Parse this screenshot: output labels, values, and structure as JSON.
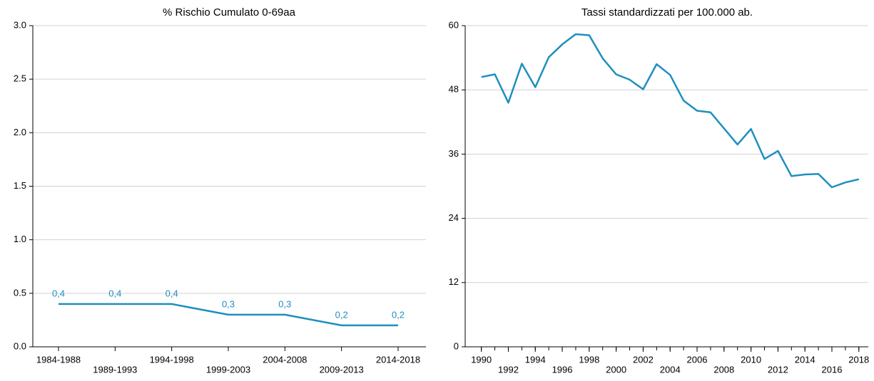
{
  "chart_data": [
    {
      "type": "line",
      "title": "% Rischio Cumulato 0-69aa",
      "categories": [
        "1984-1988",
        "1989-1993",
        "1994-1998",
        "1999-2003",
        "2004-2008",
        "2009-2013",
        "2014-2018"
      ],
      "values": [
        0.4,
        0.4,
        0.4,
        0.3,
        0.3,
        0.2,
        0.2
      ],
      "value_labels": [
        "0,4",
        "0,4",
        "0,4",
        "0,3",
        "0,3",
        "0,2",
        "0,2"
      ],
      "color": "#1f8fbf",
      "ylim": [
        0,
        3
      ],
      "yticks": [
        {
          "value": 0,
          "label": "0.0"
        },
        0.5,
        {
          "value": 1,
          "label": "1.0"
        },
        1.5,
        {
          "value": 2,
          "label": "2.0"
        },
        2.5,
        {
          "value": 3,
          "label": "3.0"
        }
      ],
      "grid": true
    },
    {
      "type": "line",
      "title": "Tassi standardizzati per 100.000 ab.",
      "x": [
        1990,
        1991,
        1992,
        1993,
        1994,
        1995,
        1996,
        1997,
        1998,
        1999,
        2000,
        2001,
        2002,
        2003,
        2004,
        2005,
        2006,
        2007,
        2008,
        2009,
        2010,
        2011,
        2012,
        2013,
        2014,
        2015,
        2016,
        2017,
        2018
      ],
      "values": [
        50.4,
        50.9,
        45.6,
        52.9,
        48.5,
        54.1,
        56.5,
        58.4,
        58.2,
        53.9,
        50.9,
        49.9,
        48.1,
        52.8,
        50.8,
        46.0,
        44.1,
        43.8,
        40.8,
        37.8,
        40.7,
        35.1,
        36.6,
        31.9,
        32.2,
        32.3,
        29.8,
        30.7,
        31.3
      ],
      "color": "#1f8fbf",
      "xlim": [
        1988.8,
        2018.7
      ],
      "xticks": [
        1990,
        1992,
        1994,
        1996,
        1998,
        2000,
        2002,
        2004,
        2006,
        2008,
        2010,
        2012,
        2014,
        2016,
        2018
      ],
      "ylim": [
        0,
        60
      ],
      "yticks": [
        0,
        12,
        24,
        36,
        48,
        60
      ],
      "grid": true
    }
  ]
}
